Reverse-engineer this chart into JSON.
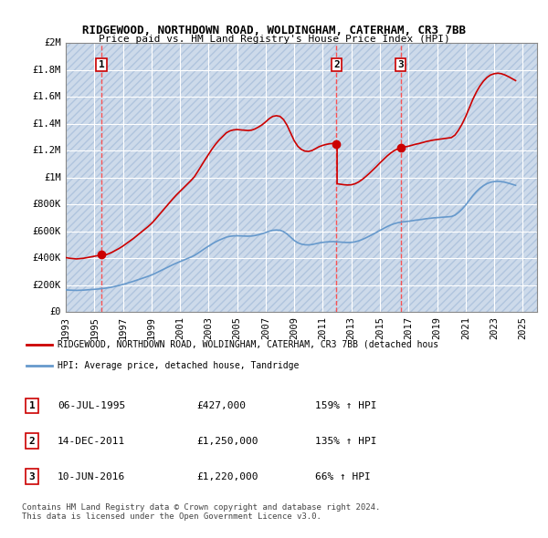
{
  "title": "RIDGEWOOD, NORTHDOWN ROAD, WOLDINGHAM, CATERHAM, CR3 7BB",
  "subtitle": "Price paid vs. HM Land Registry's House Price Index (HPI)",
  "background_color": "#ffffff",
  "plot_bg_color": "#dce6f1",
  "hatch_color": "#c0d0e8",
  "grid_color": "#ffffff",
  "ylim": [
    0,
    2000000
  ],
  "yticks": [
    0,
    200000,
    400000,
    600000,
    800000,
    1000000,
    1200000,
    1400000,
    1600000,
    1800000,
    2000000
  ],
  "ytick_labels": [
    "£0",
    "£200K",
    "£400K",
    "£600K",
    "£800K",
    "£1M",
    "£1.2M",
    "£1.4M",
    "£1.6M",
    "£1.8M",
    "£2M"
  ],
  "xlim_start": 1993.0,
  "xlim_end": 2026.0,
  "sale_dates": [
    1995.5,
    2011.95,
    2016.44
  ],
  "sale_prices": [
    427000,
    1250000,
    1220000
  ],
  "sale_labels": [
    "1",
    "2",
    "3"
  ],
  "red_line_color": "#cc0000",
  "blue_line_color": "#6699cc",
  "dashed_line_color": "#ff4444",
  "marker_color": "#cc0000",
  "legend_label_red": "RIDGEWOOD, NORTHDOWN ROAD, WOLDINGHAM, CATERHAM, CR3 7BB (detached hous",
  "legend_label_blue": "HPI: Average price, detached house, Tandridge",
  "table_rows": [
    [
      "1",
      "06-JUL-1995",
      "£427,000",
      "159% ↑ HPI"
    ],
    [
      "2",
      "14-DEC-2011",
      "£1,250,000",
      "135% ↑ HPI"
    ],
    [
      "3",
      "10-JUN-2016",
      "£1,220,000",
      "66% ↑ HPI"
    ]
  ],
  "footer_text": "Contains HM Land Registry data © Crown copyright and database right 2024.\nThis data is licensed under the Open Government Licence v3.0.",
  "hpi_years": [
    1993.0,
    1993.25,
    1993.5,
    1993.75,
    1994.0,
    1994.25,
    1994.5,
    1994.75,
    1995.0,
    1995.25,
    1995.5,
    1995.75,
    1996.0,
    1996.25,
    1996.5,
    1996.75,
    1997.0,
    1997.25,
    1997.5,
    1997.75,
    1998.0,
    1998.25,
    1998.5,
    1998.75,
    1999.0,
    1999.25,
    1999.5,
    1999.75,
    2000.0,
    2000.25,
    2000.5,
    2000.75,
    2001.0,
    2001.25,
    2001.5,
    2001.75,
    2002.0,
    2002.25,
    2002.5,
    2002.75,
    2003.0,
    2003.25,
    2003.5,
    2003.75,
    2004.0,
    2004.25,
    2004.5,
    2004.75,
    2005.0,
    2005.25,
    2005.5,
    2005.75,
    2006.0,
    2006.25,
    2006.5,
    2006.75,
    2007.0,
    2007.25,
    2007.5,
    2007.75,
    2008.0,
    2008.25,
    2008.5,
    2008.75,
    2009.0,
    2009.25,
    2009.5,
    2009.75,
    2010.0,
    2010.25,
    2010.5,
    2010.75,
    2011.0,
    2011.25,
    2011.5,
    2011.75,
    2012.0,
    2012.25,
    2012.5,
    2012.75,
    2013.0,
    2013.25,
    2013.5,
    2013.75,
    2014.0,
    2014.25,
    2014.5,
    2014.75,
    2015.0,
    2015.25,
    2015.5,
    2015.75,
    2016.0,
    2016.25,
    2016.5,
    2016.75,
    2017.0,
    2017.25,
    2017.5,
    2017.75,
    2018.0,
    2018.25,
    2018.5,
    2018.75,
    2019.0,
    2019.25,
    2019.5,
    2019.75,
    2020.0,
    2020.25,
    2020.5,
    2020.75,
    2021.0,
    2021.25,
    2021.5,
    2021.75,
    2022.0,
    2022.25,
    2022.5,
    2022.75,
    2023.0,
    2023.25,
    2023.5,
    2023.75,
    2024.0,
    2024.25,
    2024.5
  ],
  "hpi_values": [
    165000,
    163000,
    162000,
    161000,
    162000,
    163000,
    165000,
    167000,
    169000,
    171000,
    174000,
    177000,
    181000,
    186000,
    192000,
    198000,
    205000,
    213000,
    221000,
    229000,
    238000,
    247000,
    256000,
    265000,
    275000,
    287000,
    300000,
    313000,
    326000,
    339000,
    352000,
    364000,
    375000,
    386000,
    397000,
    408000,
    420000,
    437000,
    455000,
    473000,
    490000,
    507000,
    522000,
    535000,
    546000,
    557000,
    563000,
    566000,
    567000,
    566000,
    565000,
    564000,
    565000,
    569000,
    575000,
    582000,
    591000,
    601000,
    608000,
    610000,
    608000,
    598000,
    580000,
    556000,
    532000,
    515000,
    505000,
    500000,
    499000,
    502000,
    508000,
    514000,
    518000,
    521000,
    523000,
    524000,
    522000,
    520000,
    518000,
    517000,
    518000,
    522000,
    529000,
    539000,
    551000,
    564000,
    578000,
    592000,
    607000,
    621000,
    635000,
    647000,
    657000,
    664000,
    669000,
    672000,
    675000,
    679000,
    683000,
    686000,
    690000,
    694000,
    697000,
    700000,
    702000,
    704000,
    706000,
    708000,
    710000,
    720000,
    740000,
    765000,
    795000,
    830000,
    865000,
    895000,
    920000,
    940000,
    955000,
    965000,
    970000,
    972000,
    970000,
    965000,
    958000,
    950000,
    942000
  ],
  "price_years": [
    1993.0,
    1993.25,
    1993.5,
    1993.75,
    1994.0,
    1994.25,
    1994.5,
    1994.75,
    1995.0,
    1995.25,
    1995.5,
    1995.75,
    1996.0,
    1996.25,
    1996.5,
    1996.75,
    1997.0,
    1997.25,
    1997.5,
    1997.75,
    1998.0,
    1998.25,
    1998.5,
    1998.75,
    1999.0,
    1999.25,
    1999.5,
    1999.75,
    2000.0,
    2000.25,
    2000.5,
    2000.75,
    2001.0,
    2001.25,
    2001.5,
    2001.75,
    2002.0,
    2002.25,
    2002.5,
    2002.75,
    2003.0,
    2003.25,
    2003.5,
    2003.75,
    2004.0,
    2004.25,
    2004.5,
    2004.75,
    2005.0,
    2005.25,
    2005.5,
    2005.75,
    2006.0,
    2006.25,
    2006.5,
    2006.75,
    2007.0,
    2007.25,
    2007.5,
    2007.75,
    2008.0,
    2008.25,
    2008.5,
    2008.75,
    2009.0,
    2009.25,
    2009.5,
    2009.75,
    2010.0,
    2010.25,
    2010.5,
    2010.75,
    2011.0,
    2011.25,
    2011.5,
    2011.75,
    2012.0,
    2012.25,
    2012.5,
    2012.75,
    2013.0,
    2013.25,
    2013.5,
    2013.75,
    2014.0,
    2014.25,
    2014.5,
    2014.75,
    2015.0,
    2015.25,
    2015.5,
    2015.75,
    2016.0,
    2016.25,
    2016.5,
    2016.75,
    2017.0,
    2017.25,
    2017.5,
    2017.75,
    2018.0,
    2018.25,
    2018.5,
    2018.75,
    2019.0,
    2019.25,
    2019.5,
    2019.75,
    2020.0,
    2020.25,
    2020.5,
    2020.75,
    2021.0,
    2021.25,
    2021.5,
    2021.75,
    2022.0,
    2022.25,
    2022.5,
    2022.75,
    2023.0,
    2023.25,
    2023.5,
    2023.75,
    2024.0,
    2024.25,
    2024.5
  ],
  "price_values": [
    null,
    null,
    null,
    null,
    null,
    null,
    null,
    null,
    null,
    null,
    427000,
    null,
    null,
    null,
    null,
    null,
    null,
    null,
    null,
    null,
    null,
    null,
    null,
    null,
    null,
    null,
    null,
    null,
    null,
    null,
    null,
    null,
    null,
    null,
    null,
    null,
    null,
    null,
    null,
    null,
    null,
    null,
    null,
    null,
    null,
    null,
    null,
    null,
    null,
    null,
    null,
    null,
    null,
    null,
    null,
    null,
    null,
    null,
    null,
    null,
    null,
    null,
    null,
    null,
    null,
    null,
    null,
    null,
    null,
    null,
    null,
    null,
    null,
    null,
    null,
    null,
    null,
    1250000,
    null,
    null,
    null,
    null,
    null,
    null,
    null,
    null,
    null,
    null,
    null,
    null,
    null,
    null,
    null,
    null,
    null,
    1220000,
    null,
    null,
    null,
    null,
    null,
    null,
    null,
    null,
    null,
    null,
    null,
    null,
    null,
    null,
    null,
    null,
    null,
    null,
    null,
    null,
    null,
    null,
    null,
    null,
    null,
    null,
    null,
    null,
    null,
    null,
    null
  ]
}
